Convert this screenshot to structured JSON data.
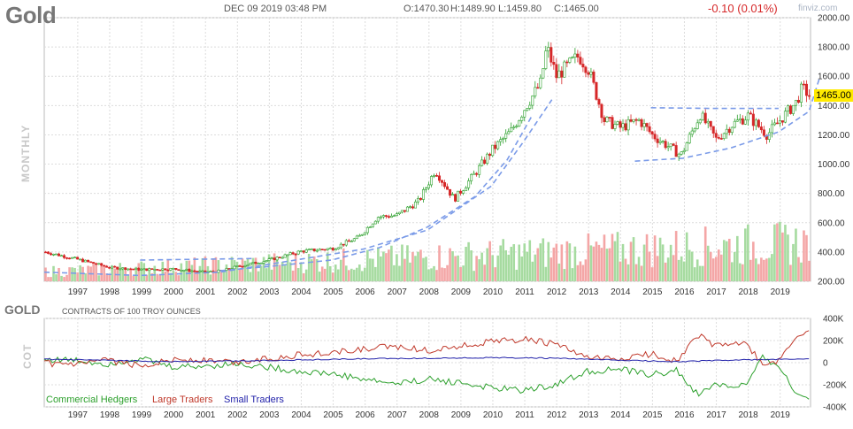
{
  "header": {
    "symbol": "Gold",
    "datetime": "DEC 09 2019 03:48 PM",
    "open": "O:1470.30",
    "high": "H:1489.90",
    "low": "L:1459.80",
    "close": "C:1465.00",
    "change": "-0.10 (0.01%)",
    "brand": "finviz.com",
    "timeframe": "MONTHLY",
    "last_price": "1465.00"
  },
  "cot_panel": {
    "title": "GOLD",
    "subtitle": "CONTRACTS OF 100 TROY OUNCES",
    "side_label": "COT",
    "legend": [
      {
        "name": "Commercial Hedgers",
        "color": "#2ca02c"
      },
      {
        "name": "Large Traders",
        "color": "#c0392b"
      },
      {
        "name": "Small Traders",
        "color": "#2222aa"
      }
    ]
  },
  "colors": {
    "up": "#2ca02c",
    "down": "#d62728",
    "volume_up": "#a6dba0",
    "volume_down": "#f4a6a6",
    "trend": "#7b9be8",
    "grid": "#dcdcdc"
  },
  "chart_data": [
    {
      "type": "candlestick",
      "x_ticks": [
        "1997",
        "1998",
        "1999",
        "2000",
        "2001",
        "2002",
        "2003",
        "2004",
        "2005",
        "2006",
        "2007",
        "2008",
        "2009",
        "2010",
        "2011",
        "2012",
        "2013",
        "2014",
        "2015",
        "2016",
        "2017",
        "2018",
        "2019"
      ],
      "y_ticks": [
        "200.00",
        "400.00",
        "600.00",
        "800.00",
        "1000.00",
        "1200.00",
        "1400.00",
        "1600.00",
        "1800.00",
        "2000.00"
      ],
      "ylim": [
        200,
        2000
      ],
      "xlim": [
        1996.0,
        2020.0
      ],
      "series_anchor_points": [
        [
          1996.0,
          400
        ],
        [
          1997.0,
          350
        ],
        [
          1998.0,
          295
        ],
        [
          1999.0,
          280
        ],
        [
          2000.0,
          285
        ],
        [
          2001.0,
          262
        ],
        [
          2001.5,
          270
        ],
        [
          2002.0,
          300
        ],
        [
          2003.0,
          345
        ],
        [
          2004.0,
          405
        ],
        [
          2005.0,
          425
        ],
        [
          2005.8,
          500
        ],
        [
          2006.4,
          640
        ],
        [
          2007.0,
          650
        ],
        [
          2007.7,
          750
        ],
        [
          2008.2,
          960
        ],
        [
          2008.8,
          760
        ],
        [
          2009.5,
          950
        ],
        [
          2010.0,
          1100
        ],
        [
          2010.6,
          1230
        ],
        [
          2011.0,
          1380
        ],
        [
          2011.5,
          1550
        ],
        [
          2011.7,
          1800
        ],
        [
          2012.0,
          1600
        ],
        [
          2012.7,
          1740
        ],
        [
          2013.0,
          1650
        ],
        [
          2013.5,
          1300
        ],
        [
          2014.0,
          1250
        ],
        [
          2014.6,
          1300
        ],
        [
          2015.0,
          1200
        ],
        [
          2015.9,
          1060
        ],
        [
          2016.5,
          1340
        ],
        [
          2017.0,
          1170
        ],
        [
          2017.5,
          1270
        ],
        [
          2018.0,
          1330
        ],
        [
          2018.6,
          1200
        ],
        [
          2019.0,
          1300
        ],
        [
          2019.5,
          1420
        ],
        [
          2019.7,
          1520
        ],
        [
          2019.95,
          1465
        ]
      ],
      "volume_ylim": [
        0,
        400
      ],
      "annotations": [
        {
          "type": "dashed_trend",
          "points": [
            [
              1996.0,
              262
            ],
            [
              1999.0,
              240
            ],
            [
              2001.5,
              262
            ],
            [
              2004.0,
              350
            ],
            [
              2006.0,
              420
            ],
            [
              2008.0,
              550
            ],
            [
              2010.0,
              850
            ],
            [
              2011.0,
              1150
            ],
            [
              2011.9,
              1440
            ]
          ]
        },
        {
          "type": "dashed_trend",
          "points": [
            [
              2001.5,
              272
            ],
            [
              2003.0,
              300
            ],
            [
              2005.0,
              345
            ],
            [
              2006.5,
              430
            ],
            [
              2008.0,
              570
            ],
            [
              2009.5,
              780
            ],
            [
              2010.5,
              1030
            ],
            [
              2011.3,
              1340
            ]
          ]
        },
        {
          "type": "dashed_trend",
          "points": [
            [
              1999.0,
              345
            ],
            [
              2002.5,
              355
            ]
          ]
        },
        {
          "type": "dashed_trend",
          "points": [
            [
              2014.5,
              1020
            ],
            [
              2016.0,
              1040
            ],
            [
              2017.5,
              1110
            ],
            [
              2019.0,
              1220
            ],
            [
              2019.95,
              1360
            ],
            [
              2020.3,
              1600
            ]
          ]
        },
        {
          "type": "dashed_trend",
          "points": [
            [
              2015.0,
              1385
            ],
            [
              2017.0,
              1380
            ],
            [
              2019.0,
              1380
            ]
          ]
        }
      ]
    },
    {
      "type": "line",
      "x_ticks": [
        "1997",
        "1998",
        "1999",
        "2000",
        "2001",
        "2002",
        "2003",
        "2004",
        "2005",
        "2006",
        "2007",
        "2008",
        "2009",
        "2010",
        "2011",
        "2012",
        "2013",
        "2014",
        "2015",
        "2016",
        "2017",
        "2018",
        "2019"
      ],
      "y_ticks": [
        "400K",
        "200K",
        "0",
        "-200K",
        "-400K"
      ],
      "ylim": [
        -400,
        400
      ],
      "series": [
        {
          "name": "Commercial Hedgers",
          "points": [
            [
              1996.0,
              30
            ],
            [
              1997.0,
              20
            ],
            [
              1998.0,
              -10
            ],
            [
              1999.0,
              40
            ],
            [
              2000.0,
              -40
            ],
            [
              2001.0,
              -30
            ],
            [
              2002.0,
              -10
            ],
            [
              2003.0,
              -40
            ],
            [
              2004.0,
              -80
            ],
            [
              2005.0,
              -100
            ],
            [
              2006.0,
              -150
            ],
            [
              2007.0,
              -190
            ],
            [
              2008.0,
              -150
            ],
            [
              2009.0,
              -180
            ],
            [
              2010.0,
              -230
            ],
            [
              2011.0,
              -250
            ],
            [
              2012.0,
              -200
            ],
            [
              2013.0,
              -80
            ],
            [
              2014.0,
              -60
            ],
            [
              2015.0,
              -110
            ],
            [
              2015.8,
              -70
            ],
            [
              2016.5,
              -300
            ],
            [
              2017.0,
              -190
            ],
            [
              2017.5,
              -220
            ],
            [
              2018.0,
              -200
            ],
            [
              2018.5,
              40
            ],
            [
              2019.0,
              -20
            ],
            [
              2019.5,
              -270
            ],
            [
              2019.95,
              -330
            ]
          ]
        },
        {
          "name": "Large Traders",
          "points": [
            [
              1996.0,
              -10
            ],
            [
              1997.0,
              -20
            ],
            [
              1998.0,
              20
            ],
            [
              1999.0,
              -30
            ],
            [
              2000.0,
              30
            ],
            [
              2001.0,
              20
            ],
            [
              2002.0,
              0
            ],
            [
              2003.0,
              40
            ],
            [
              2004.0,
              70
            ],
            [
              2005.0,
              90
            ],
            [
              2006.0,
              120
            ],
            [
              2007.0,
              150
            ],
            [
              2008.0,
              110
            ],
            [
              2009.0,
              150
            ],
            [
              2010.0,
              190
            ],
            [
              2011.0,
              210
            ],
            [
              2012.0,
              170
            ],
            [
              2013.0,
              40
            ],
            [
              2014.0,
              30
            ],
            [
              2015.0,
              80
            ],
            [
              2015.8,
              20
            ],
            [
              2016.5,
              250
            ],
            [
              2017.0,
              150
            ],
            [
              2017.5,
              180
            ],
            [
              2018.0,
              160
            ],
            [
              2018.5,
              -20
            ],
            [
              2019.0,
              10
            ],
            [
              2019.5,
              220
            ],
            [
              2019.95,
              290
            ]
          ]
        },
        {
          "name": "Small Traders",
          "points": [
            [
              1996.0,
              30
            ],
            [
              1998.0,
              20
            ],
            [
              2000.0,
              10
            ],
            [
              2002.0,
              15
            ],
            [
              2004.0,
              25
            ],
            [
              2006.0,
              35
            ],
            [
              2008.0,
              40
            ],
            [
              2010.0,
              45
            ],
            [
              2012.0,
              40
            ],
            [
              2013.0,
              30
            ],
            [
              2015.0,
              15
            ],
            [
              2016.0,
              10
            ],
            [
              2017.0,
              20
            ],
            [
              2018.0,
              25
            ],
            [
              2019.0,
              30
            ],
            [
              2019.95,
              35
            ]
          ]
        }
      ]
    }
  ]
}
